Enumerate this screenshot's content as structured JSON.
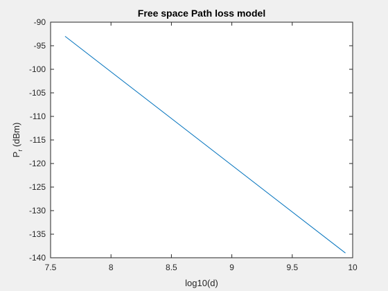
{
  "chart_data": {
    "type": "line",
    "title": "Free space Path loss model",
    "xlabel": "log10(d)",
    "ylabel": {
      "main": "P",
      "subscript": "r",
      "rest": " (dBm)"
    },
    "xlim": [
      7.5,
      10
    ],
    "ylim": [
      -140,
      -90
    ],
    "xticks": [
      7.5,
      8,
      8.5,
      9,
      9.5,
      10
    ],
    "yticks": [
      -90,
      -95,
      -100,
      -105,
      -110,
      -115,
      -120,
      -125,
      -130,
      -135,
      -140
    ],
    "xtick_labels": [
      "7.5",
      "8",
      "8.5",
      "9",
      "9.5",
      "10"
    ],
    "ytick_labels": [
      "-90",
      "-95",
      "-100",
      "-105",
      "-110",
      "-115",
      "-120",
      "-125",
      "-130",
      "-135",
      "-140"
    ],
    "grid": false,
    "series": [
      {
        "color": "#0072bd",
        "x": [
          7.62,
          9.94
        ],
        "y": [
          -93.0,
          -139.0
        ]
      }
    ]
  }
}
